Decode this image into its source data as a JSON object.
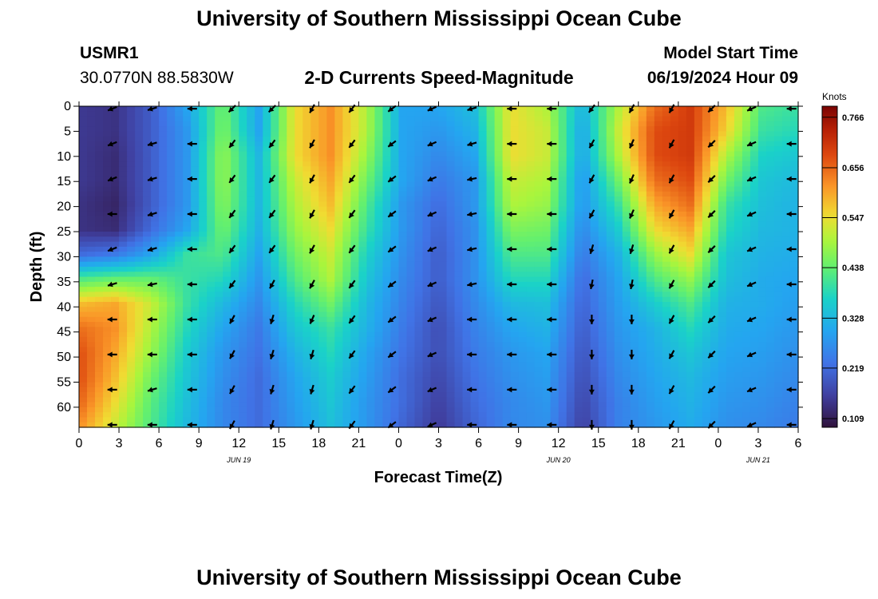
{
  "header": {
    "title": "University of Southern Mississippi Ocean Cube",
    "station_id": "USMR1",
    "station_coords": "30.0770N  88.5830W",
    "chart_heading": "2-D Currents Speed-Magnitude",
    "model_label": "Model Start Time",
    "model_time": "06/19/2024 Hour 09"
  },
  "footer": {
    "title": "University of Southern Mississippi Ocean Cube"
  },
  "chart_data": {
    "type": "heatmap",
    "title": "2-D Currents Speed-Magnitude",
    "xlabel": "Forecast Time(Z)",
    "ylabel": "Depth (ft)",
    "colorbar_label": "Knots",
    "x_hours": [
      0,
      3,
      6,
      9,
      12,
      15,
      18,
      21,
      24,
      27,
      30,
      33,
      36,
      39,
      42,
      45,
      48,
      51,
      54
    ],
    "xlim": [
      0,
      54
    ],
    "x_tick_labels": [
      "0",
      "3",
      "6",
      "9",
      "12",
      "15",
      "18",
      "21",
      "0",
      "3",
      "6",
      "9",
      "12",
      "15",
      "18",
      "21",
      "0",
      "3",
      "6"
    ],
    "date_labels": [
      {
        "text": "JUN 19",
        "hour": 12
      },
      {
        "text": "JUN 20",
        "hour": 36
      },
      {
        "text": "JUN 21",
        "hour": 51
      }
    ],
    "depth_ticks": [
      0,
      5,
      10,
      15,
      20,
      25,
      30,
      35,
      40,
      45,
      50,
      55,
      60
    ],
    "depth_tick_labels": [
      "0",
      "5",
      "10",
      "15",
      "20",
      "25",
      "30",
      "35",
      "40",
      "45",
      "50",
      "55",
      "60"
    ],
    "ylim": [
      0,
      64
    ],
    "colorbar_ticks": [
      0.109,
      0.219,
      0.328,
      0.438,
      0.547,
      0.656,
      0.766
    ],
    "colorbar_tick_labels": [
      "0.109",
      "0.219",
      "0.328",
      "0.438",
      "0.547",
      "0.656",
      "0.766"
    ],
    "colorbar_range": [
      0.09,
      0.79
    ],
    "arrow_times": [
      2.5,
      5.5,
      8.5,
      11.5,
      14.5,
      17.5,
      20.5,
      23.5,
      26.5,
      29.5,
      32.5,
      35.5,
      38.5,
      41.5,
      44.5,
      47.5,
      50.5,
      53.5
    ],
    "arrow_depths": [
      0.5,
      7.5,
      14.5,
      21.5,
      28.5,
      35.5,
      42.5,
      49.5,
      56.5,
      63.5
    ],
    "speed_knots": [
      [
        0.15,
        0.14,
        0.2,
        0.3,
        0.45,
        0.3,
        0.55,
        0.62,
        0.5,
        0.3,
        0.3,
        0.34,
        0.55,
        0.5,
        0.32,
        0.5,
        0.65,
        0.7,
        0.58,
        0.42,
        0.4
      ],
      [
        0.15,
        0.14,
        0.2,
        0.28,
        0.46,
        0.3,
        0.55,
        0.62,
        0.5,
        0.3,
        0.28,
        0.32,
        0.55,
        0.52,
        0.3,
        0.52,
        0.68,
        0.7,
        0.56,
        0.4,
        0.38
      ],
      [
        0.15,
        0.13,
        0.2,
        0.28,
        0.48,
        0.33,
        0.55,
        0.62,
        0.48,
        0.3,
        0.26,
        0.3,
        0.55,
        0.52,
        0.3,
        0.5,
        0.68,
        0.7,
        0.5,
        0.37,
        0.35
      ],
      [
        0.15,
        0.13,
        0.2,
        0.28,
        0.48,
        0.33,
        0.52,
        0.6,
        0.45,
        0.3,
        0.24,
        0.28,
        0.52,
        0.5,
        0.28,
        0.45,
        0.65,
        0.68,
        0.45,
        0.35,
        0.33
      ],
      [
        0.14,
        0.12,
        0.2,
        0.28,
        0.47,
        0.33,
        0.5,
        0.58,
        0.42,
        0.28,
        0.22,
        0.28,
        0.5,
        0.48,
        0.28,
        0.4,
        0.6,
        0.65,
        0.4,
        0.34,
        0.32
      ],
      [
        0.14,
        0.13,
        0.22,
        0.3,
        0.45,
        0.32,
        0.48,
        0.55,
        0.4,
        0.28,
        0.21,
        0.27,
        0.46,
        0.45,
        0.26,
        0.36,
        0.55,
        0.6,
        0.38,
        0.33,
        0.32
      ],
      [
        0.22,
        0.24,
        0.3,
        0.4,
        0.42,
        0.3,
        0.45,
        0.52,
        0.37,
        0.27,
        0.2,
        0.27,
        0.42,
        0.42,
        0.24,
        0.32,
        0.48,
        0.55,
        0.35,
        0.32,
        0.31
      ],
      [
        0.42,
        0.44,
        0.44,
        0.4,
        0.38,
        0.28,
        0.42,
        0.5,
        0.35,
        0.26,
        0.2,
        0.27,
        0.38,
        0.38,
        0.22,
        0.3,
        0.42,
        0.48,
        0.34,
        0.31,
        0.3
      ],
      [
        0.58,
        0.6,
        0.52,
        0.4,
        0.33,
        0.26,
        0.38,
        0.45,
        0.33,
        0.25,
        0.19,
        0.26,
        0.33,
        0.34,
        0.21,
        0.29,
        0.36,
        0.42,
        0.32,
        0.31,
        0.29
      ],
      [
        0.65,
        0.62,
        0.5,
        0.38,
        0.3,
        0.24,
        0.35,
        0.4,
        0.32,
        0.24,
        0.18,
        0.25,
        0.3,
        0.32,
        0.2,
        0.28,
        0.32,
        0.38,
        0.31,
        0.3,
        0.28
      ],
      [
        0.68,
        0.6,
        0.48,
        0.36,
        0.28,
        0.23,
        0.32,
        0.38,
        0.3,
        0.23,
        0.18,
        0.24,
        0.28,
        0.3,
        0.19,
        0.27,
        0.31,
        0.35,
        0.3,
        0.29,
        0.27
      ],
      [
        0.68,
        0.58,
        0.45,
        0.35,
        0.27,
        0.22,
        0.3,
        0.36,
        0.29,
        0.22,
        0.17,
        0.23,
        0.27,
        0.29,
        0.18,
        0.26,
        0.3,
        0.33,
        0.29,
        0.28,
        0.26
      ],
      [
        0.66,
        0.55,
        0.43,
        0.34,
        0.26,
        0.22,
        0.29,
        0.35,
        0.28,
        0.22,
        0.16,
        0.22,
        0.26,
        0.28,
        0.17,
        0.25,
        0.29,
        0.32,
        0.28,
        0.27,
        0.25
      ],
      [
        0.62,
        0.52,
        0.42,
        0.33,
        0.26,
        0.22,
        0.28,
        0.34,
        0.28,
        0.21,
        0.15,
        0.21,
        0.26,
        0.27,
        0.16,
        0.25,
        0.28,
        0.31,
        0.27,
        0.26,
        0.24
      ]
    ],
    "arrow_dirs": [
      [
        {
          "dx": -1,
          "dy": 0.4
        },
        {
          "dx": -1,
          "dy": 0.3
        },
        {
          "dx": -1,
          "dy": 0
        },
        {
          "dx": -0.7,
          "dy": 0.7
        },
        {
          "dx": -0.7,
          "dy": 0.7
        },
        {
          "dx": -0.5,
          "dy": 0.9
        },
        {
          "dx": -0.6,
          "dy": 0.8
        },
        {
          "dx": -0.8,
          "dy": 0.6
        },
        {
          "dx": -0.9,
          "dy": 0.4
        },
        {
          "dx": -1,
          "dy": 0.3
        },
        {
          "dx": -1,
          "dy": 0
        },
        {
          "dx": -1,
          "dy": 0
        },
        {
          "dx": -0.6,
          "dy": 0.8
        },
        {
          "dx": -0.5,
          "dy": 0.9
        },
        {
          "dx": -0.5,
          "dy": 0.9
        },
        {
          "dx": -0.7,
          "dy": 0.7
        },
        {
          "dx": -0.9,
          "dy": 0.4
        },
        {
          "dx": -1,
          "dy": 0
        }
      ],
      [
        {
          "dx": -1,
          "dy": 0.4
        },
        {
          "dx": -1,
          "dy": 0.3
        },
        {
          "dx": -1,
          "dy": 0
        },
        {
          "dx": -0.6,
          "dy": 0.8
        },
        {
          "dx": -0.6,
          "dy": 0.8
        },
        {
          "dx": -0.5,
          "dy": 0.9
        },
        {
          "dx": -0.6,
          "dy": 0.8
        },
        {
          "dx": -0.8,
          "dy": 0.6
        },
        {
          "dx": -0.9,
          "dy": 0.4
        },
        {
          "dx": -1,
          "dy": 0.3
        },
        {
          "dx": -1,
          "dy": 0
        },
        {
          "dx": -1,
          "dy": 0
        },
        {
          "dx": -0.5,
          "dy": 0.9
        },
        {
          "dx": -0.4,
          "dy": 0.9
        },
        {
          "dx": -0.5,
          "dy": 0.9
        },
        {
          "dx": -0.7,
          "dy": 0.7
        },
        {
          "dx": -0.9,
          "dy": 0.4
        },
        {
          "dx": -1,
          "dy": 0
        }
      ],
      [
        {
          "dx": -1,
          "dy": 0.4
        },
        {
          "dx": -1,
          "dy": 0.3
        },
        {
          "dx": -1,
          "dy": 0
        },
        {
          "dx": -0.6,
          "dy": 0.8
        },
        {
          "dx": -0.6,
          "dy": 0.8
        },
        {
          "dx": -0.5,
          "dy": 0.9
        },
        {
          "dx": -0.6,
          "dy": 0.8
        },
        {
          "dx": -0.8,
          "dy": 0.6
        },
        {
          "dx": -0.9,
          "dy": 0.4
        },
        {
          "dx": -1,
          "dy": 0.2
        },
        {
          "dx": -1,
          "dy": 0
        },
        {
          "dx": -1,
          "dy": 0
        },
        {
          "dx": -0.5,
          "dy": 0.9
        },
        {
          "dx": -0.4,
          "dy": 0.9
        },
        {
          "dx": -0.5,
          "dy": 0.9
        },
        {
          "dx": -0.7,
          "dy": 0.7
        },
        {
          "dx": -0.9,
          "dy": 0.4
        },
        {
          "dx": -1,
          "dy": 0
        }
      ],
      [
        {
          "dx": -1,
          "dy": 0
        },
        {
          "dx": -1,
          "dy": 0.3
        },
        {
          "dx": -1,
          "dy": 0
        },
        {
          "dx": -0.6,
          "dy": 0.8
        },
        {
          "dx": -0.6,
          "dy": 0.8
        },
        {
          "dx": -0.5,
          "dy": 0.9
        },
        {
          "dx": -0.6,
          "dy": 0.8
        },
        {
          "dx": -0.8,
          "dy": 0.6
        },
        {
          "dx": -0.9,
          "dy": 0.4
        },
        {
          "dx": -1,
          "dy": 0.2
        },
        {
          "dx": -1,
          "dy": 0
        },
        {
          "dx": -1,
          "dy": 0
        },
        {
          "dx": -0.5,
          "dy": 0.9
        },
        {
          "dx": -0.4,
          "dy": 0.9
        },
        {
          "dx": -0.5,
          "dy": 0.9
        },
        {
          "dx": -0.7,
          "dy": 0.7
        },
        {
          "dx": -0.9,
          "dy": 0.4
        },
        {
          "dx": -1,
          "dy": 0
        }
      ],
      [
        {
          "dx": -1,
          "dy": 0.4
        },
        {
          "dx": -1,
          "dy": 0.3
        },
        {
          "dx": -1,
          "dy": 0
        },
        {
          "dx": -0.6,
          "dy": 0.8
        },
        {
          "dx": -0.6,
          "dy": 0.8
        },
        {
          "dx": -0.5,
          "dy": 0.9
        },
        {
          "dx": -0.6,
          "dy": 0.8
        },
        {
          "dx": -0.8,
          "dy": 0.6
        },
        {
          "dx": -0.9,
          "dy": 0.4
        },
        {
          "dx": -1,
          "dy": 0.2
        },
        {
          "dx": -1,
          "dy": 0
        },
        {
          "dx": -1,
          "dy": 0
        },
        {
          "dx": -0.3,
          "dy": 1
        },
        {
          "dx": -0.3,
          "dy": 1
        },
        {
          "dx": -0.5,
          "dy": 0.9
        },
        {
          "dx": -0.7,
          "dy": 0.7
        },
        {
          "dx": -0.9,
          "dy": 0.4
        },
        {
          "dx": -1,
          "dy": 0
        }
      ],
      [
        {
          "dx": -1,
          "dy": 0.3
        },
        {
          "dx": -1,
          "dy": 0.2
        },
        {
          "dx": -1,
          "dy": 0
        },
        {
          "dx": -0.6,
          "dy": 0.8
        },
        {
          "dx": -0.5,
          "dy": 0.9
        },
        {
          "dx": -0.5,
          "dy": 0.9
        },
        {
          "dx": -0.6,
          "dy": 0.8
        },
        {
          "dx": -0.8,
          "dy": 0.6
        },
        {
          "dx": -0.9,
          "dy": 0.4
        },
        {
          "dx": -1,
          "dy": 0.2
        },
        {
          "dx": -1,
          "dy": 0
        },
        {
          "dx": -1,
          "dy": 0
        },
        {
          "dx": -0.2,
          "dy": 1
        },
        {
          "dx": -0.2,
          "dy": 1
        },
        {
          "dx": -0.5,
          "dy": 0.9
        },
        {
          "dx": -0.7,
          "dy": 0.7
        },
        {
          "dx": -0.9,
          "dy": 0.4
        },
        {
          "dx": -1,
          "dy": 0
        }
      ],
      [
        {
          "dx": -1,
          "dy": 0
        },
        {
          "dx": -1,
          "dy": 0
        },
        {
          "dx": -1,
          "dy": 0
        },
        {
          "dx": -0.5,
          "dy": 0.9
        },
        {
          "dx": -0.3,
          "dy": 1
        },
        {
          "dx": -0.4,
          "dy": 0.9
        },
        {
          "dx": -0.6,
          "dy": 0.8
        },
        {
          "dx": -0.8,
          "dy": 0.6
        },
        {
          "dx": -0.9,
          "dy": 0.4
        },
        {
          "dx": -1,
          "dy": 0
        },
        {
          "dx": -1,
          "dy": 0
        },
        {
          "dx": -1,
          "dy": 0
        },
        {
          "dx": 0,
          "dy": 1
        },
        {
          "dx": 0,
          "dy": 1
        },
        {
          "dx": -0.5,
          "dy": 0.9
        },
        {
          "dx": -0.7,
          "dy": 0.7
        },
        {
          "dx": -0.9,
          "dy": 0.4
        },
        {
          "dx": -1,
          "dy": 0
        }
      ],
      [
        {
          "dx": -1,
          "dy": 0
        },
        {
          "dx": -1,
          "dy": 0
        },
        {
          "dx": -1,
          "dy": 0
        },
        {
          "dx": -0.5,
          "dy": 0.9
        },
        {
          "dx": -0.3,
          "dy": 1
        },
        {
          "dx": -0.3,
          "dy": 1
        },
        {
          "dx": -0.6,
          "dy": 0.8
        },
        {
          "dx": -0.8,
          "dy": 0.6
        },
        {
          "dx": -0.9,
          "dy": 0.4
        },
        {
          "dx": -1,
          "dy": 0
        },
        {
          "dx": -1,
          "dy": 0
        },
        {
          "dx": -1,
          "dy": 0
        },
        {
          "dx": 0,
          "dy": 1
        },
        {
          "dx": 0,
          "dy": 1
        },
        {
          "dx": -0.5,
          "dy": 0.9
        },
        {
          "dx": -0.7,
          "dy": 0.7
        },
        {
          "dx": -0.9,
          "dy": 0.4
        },
        {
          "dx": -1,
          "dy": 0
        }
      ],
      [
        {
          "dx": -1,
          "dy": 0
        },
        {
          "dx": -1,
          "dy": 0.3
        },
        {
          "dx": -1,
          "dy": 0
        },
        {
          "dx": -0.5,
          "dy": 0.9
        },
        {
          "dx": -0.3,
          "dy": 1
        },
        {
          "dx": -0.3,
          "dy": 1
        },
        {
          "dx": -0.6,
          "dy": 0.8
        },
        {
          "dx": -0.8,
          "dy": 0.6
        },
        {
          "dx": -0.9,
          "dy": 0.4
        },
        {
          "dx": -1,
          "dy": 0
        },
        {
          "dx": -1,
          "dy": 0
        },
        {
          "dx": -1,
          "dy": 0
        },
        {
          "dx": 0,
          "dy": 1
        },
        {
          "dx": 0,
          "dy": 1
        },
        {
          "dx": -0.5,
          "dy": 0.9
        },
        {
          "dx": -0.7,
          "dy": 0.7
        },
        {
          "dx": -0.9,
          "dy": 0.4
        },
        {
          "dx": -1,
          "dy": 0
        }
      ],
      [
        {
          "dx": -1,
          "dy": 0
        },
        {
          "dx": -1,
          "dy": 0
        },
        {
          "dx": -1,
          "dy": 0
        },
        {
          "dx": -0.5,
          "dy": 0.9
        },
        {
          "dx": -0.3,
          "dy": 1
        },
        {
          "dx": -0.3,
          "dy": 1
        },
        {
          "dx": -0.6,
          "dy": 0.8
        },
        {
          "dx": -0.8,
          "dy": 0.6
        },
        {
          "dx": -0.9,
          "dy": 0.4
        },
        {
          "dx": -1,
          "dy": 0
        },
        {
          "dx": -1,
          "dy": 0
        },
        {
          "dx": -1,
          "dy": 0
        },
        {
          "dx": 0,
          "dy": 1
        },
        {
          "dx": 0,
          "dy": 1
        },
        {
          "dx": -0.5,
          "dy": 0.9
        },
        {
          "dx": -0.7,
          "dy": 0.7
        },
        {
          "dx": -0.9,
          "dy": 0.4
        },
        {
          "dx": -1,
          "dy": 0
        }
      ]
    ]
  }
}
